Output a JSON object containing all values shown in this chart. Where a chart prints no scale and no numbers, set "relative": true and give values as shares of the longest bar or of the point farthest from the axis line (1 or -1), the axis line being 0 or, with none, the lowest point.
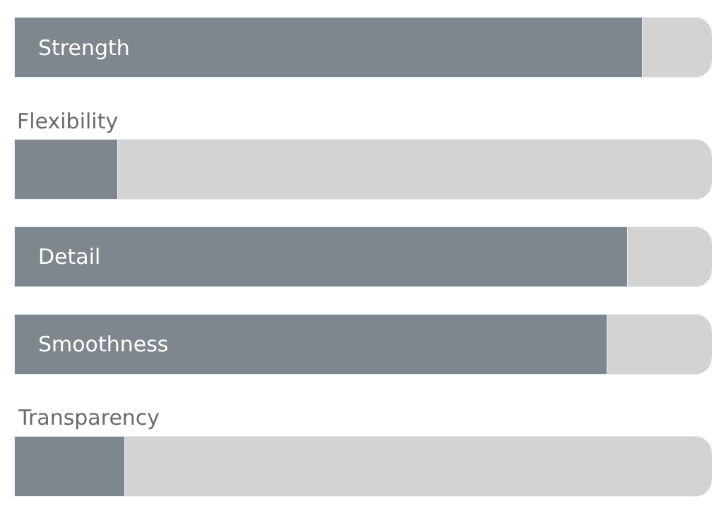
{
  "chart_data": {
    "type": "bar",
    "orientation": "horizontal",
    "stacked": true,
    "relative": true,
    "categories": [
      "Strength",
      "Flexibility",
      "Detail",
      "Smoothness",
      "Transparency"
    ],
    "series": [
      {
        "color": "#7f878e",
        "values": [
          0.9,
          0.148,
          0.879,
          0.85,
          0.158
        ]
      },
      {
        "color": "#d3d3d3",
        "values": [
          0.1,
          0.852,
          0.121,
          0.15,
          0.842
        ]
      }
    ]
  }
}
